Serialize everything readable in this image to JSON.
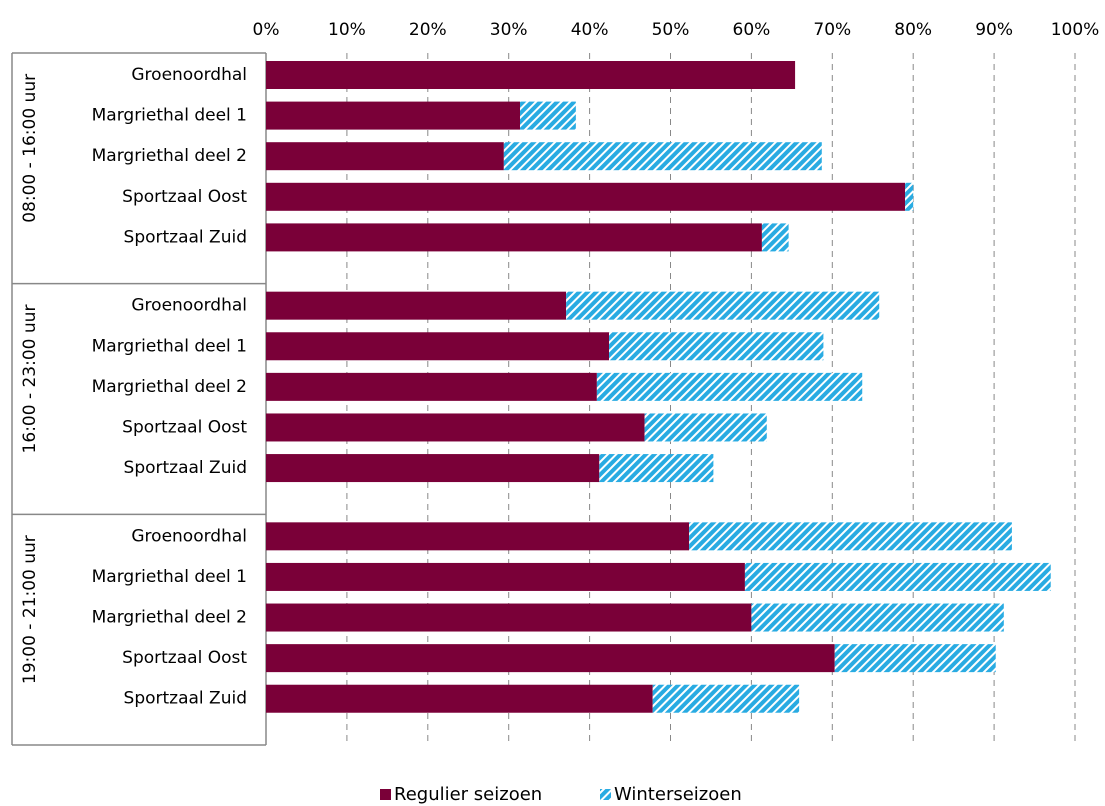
{
  "chart_data": {
    "type": "stacked-bar-horizontal",
    "groups": [
      {
        "name": "08:00 - 16:00 uur",
        "categories": [
          "Groenoordhal",
          "Margriethal deel 1",
          "Margriethal deel 2",
          "Sportzaal Oost",
          "Sportzaal Zuid"
        ]
      },
      {
        "name": "16:00 - 23:00 uur",
        "categories": [
          "Groenoordhal",
          "Margriethal deel 1",
          "Margriethal deel 2",
          "Sportzaal Oost",
          "Sportzaal Zuid"
        ]
      },
      {
        "name": "19:00 - 21:00 uur",
        "categories": [
          "Groenoordhal",
          "Margriethal deel 1",
          "Margriethal deel 2",
          "Sportzaal Oost",
          "Sportzaal Zuid"
        ]
      }
    ],
    "series": [
      {
        "name": "Regulier seizoen",
        "color": "#7a0038",
        "values": [
          65.4,
          31.4,
          29.4,
          79.0,
          61.3,
          37.1,
          42.4,
          40.9,
          46.8,
          41.2,
          52.3,
          59.2,
          60.0,
          70.3,
          47.8
        ]
      },
      {
        "name": "Winterseizoen",
        "color": "#29abe2",
        "pattern": "hatch",
        "values": [
          0,
          6.9,
          39.3,
          1.0,
          3.3,
          38.7,
          26.5,
          32.8,
          15.1,
          14.1,
          39.9,
          37.8,
          31.2,
          19.9,
          18.1
        ]
      }
    ],
    "xlim": [
      0,
      100
    ],
    "xticks": [
      {
        "value": 0,
        "label": "0%"
      },
      {
        "value": 10,
        "label": "10%"
      },
      {
        "value": 20,
        "label": "20%"
      },
      {
        "value": 30,
        "label": "30%"
      },
      {
        "value": 40,
        "label": "40%"
      },
      {
        "value": 50,
        "label": "50%"
      },
      {
        "value": 60,
        "label": "60%"
      },
      {
        "value": 70,
        "label": "70%"
      },
      {
        "value": 80,
        "label": "80%"
      },
      {
        "value": 90,
        "label": "90%"
      },
      {
        "value": 100,
        "label": "100%"
      }
    ],
    "grid": true,
    "legend": "bottom"
  }
}
